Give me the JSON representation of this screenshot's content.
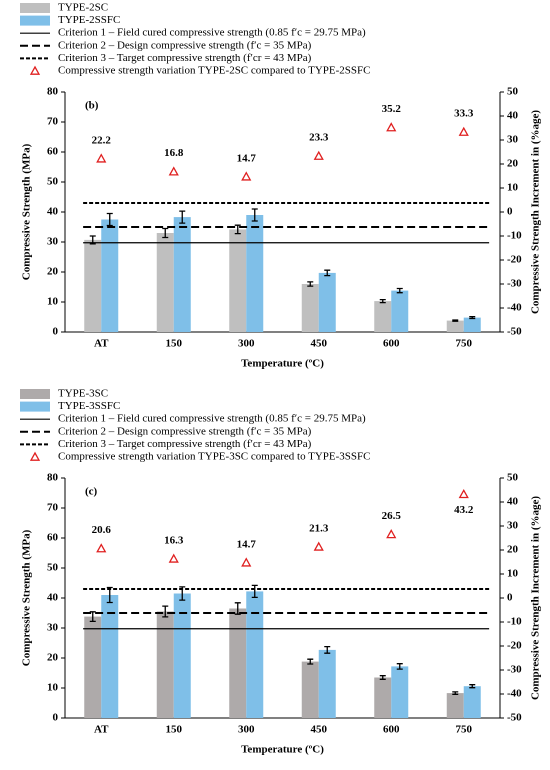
{
  "chart_data": [
    {
      "type": "bar",
      "panel_label": "(b)",
      "xlabel": "Temperature (ºC)",
      "ylabel": "Compressive Strength (MPa)",
      "y2label": "Compressive Strength Increment in (%age)",
      "categories": [
        "AT",
        "150",
        "300",
        "450",
        "600",
        "750"
      ],
      "ylim": [
        0,
        80
      ],
      "yticks": [
        0,
        10,
        20,
        30,
        40,
        50,
        60,
        70,
        80
      ],
      "y2lim": [
        -50,
        50
      ],
      "y2ticks": [
        -50,
        -40,
        -30,
        -20,
        -10,
        0,
        10,
        20,
        30,
        40,
        50
      ],
      "series": [
        {
          "name": "TYPE-2SC",
          "color": "#bfbfbf",
          "values": [
            30.7,
            33,
            34.2,
            16,
            10.3,
            3.8
          ],
          "errors": [
            1.3,
            1.5,
            1.4,
            0.7,
            0.5,
            0.2
          ]
        },
        {
          "name": "TYPE-2SSFC",
          "color": "#7fbfe8",
          "values": [
            37.5,
            38.3,
            39,
            19.7,
            13.8,
            4.8
          ],
          "errors": [
            2,
            2,
            2,
            0.9,
            0.7,
            0.3
          ]
        }
      ],
      "reference_lines": [
        {
          "name": "Criterion 1 – Field cured compressive strength (0.85 f′c = 29.75 MPa)",
          "value": 29.75,
          "dash": "solid"
        },
        {
          "name": "Criterion 2 – Design compressive strength (f′c = 35 MPa)",
          "value": 35,
          "dash": "long"
        },
        {
          "name": "Criterion 3 – Target compressive strength (f′cr = 43 MPa)",
          "value": 43,
          "dash": "short"
        }
      ],
      "markers": {
        "name": "Compressive strength variation TYPE-2SC compared to TYPE-2SSFC",
        "color": "#e02020",
        "axis": "y2",
        "values": [
          22.2,
          16.8,
          14.7,
          23.3,
          35.2,
          33.3
        ]
      }
    },
    {
      "type": "bar",
      "panel_label": "(c)",
      "xlabel": "Temperature (ºC)",
      "ylabel": "Compressive Strength (MPa)",
      "y2label": "Compressive Strength Increment in (%age)",
      "categories": [
        "AT",
        "150",
        "300",
        "450",
        "600",
        "750"
      ],
      "ylim": [
        0,
        80
      ],
      "yticks": [
        0,
        10,
        20,
        30,
        40,
        50,
        60,
        70,
        80
      ],
      "y2lim": [
        -50,
        50
      ],
      "y2ticks": [
        -50,
        -40,
        -30,
        -20,
        -10,
        0,
        10,
        20,
        30,
        40,
        50
      ],
      "series": [
        {
          "name": "TYPE-3SC",
          "color": "#aeaaaa",
          "values": [
            33.8,
            35.5,
            36.5,
            18.8,
            13.5,
            8.3
          ],
          "errors": [
            1.6,
            1.8,
            1.9,
            0.8,
            0.6,
            0.4
          ]
        },
        {
          "name": "TYPE-3SSFC",
          "color": "#7fbfe8",
          "values": [
            41,
            41.5,
            42.2,
            22.7,
            17.2,
            10.6
          ],
          "errors": [
            2.5,
            2.2,
            2,
            1.1,
            0.9,
            0.5
          ]
        }
      ],
      "reference_lines": [
        {
          "name": "Criterion 1 – Field cured compressive strength (0.85 f′c = 29.75 MPa)",
          "value": 29.75,
          "dash": "solid"
        },
        {
          "name": "Criterion 2 – Design compressive strength (f′c = 35 MPa)",
          "value": 35,
          "dash": "long"
        },
        {
          "name": "Criterion 3 – Target compressive strength (f′cr = 43 MPa)",
          "value": 43,
          "dash": "short"
        }
      ],
      "markers": {
        "name": "Compressive strength variation TYPE-3SC compared to TYPE-3SSFC",
        "color": "#e02020",
        "axis": "y2",
        "values": [
          20.6,
          16.3,
          14.7,
          21.3,
          26.5,
          43.2
        ]
      }
    }
  ]
}
